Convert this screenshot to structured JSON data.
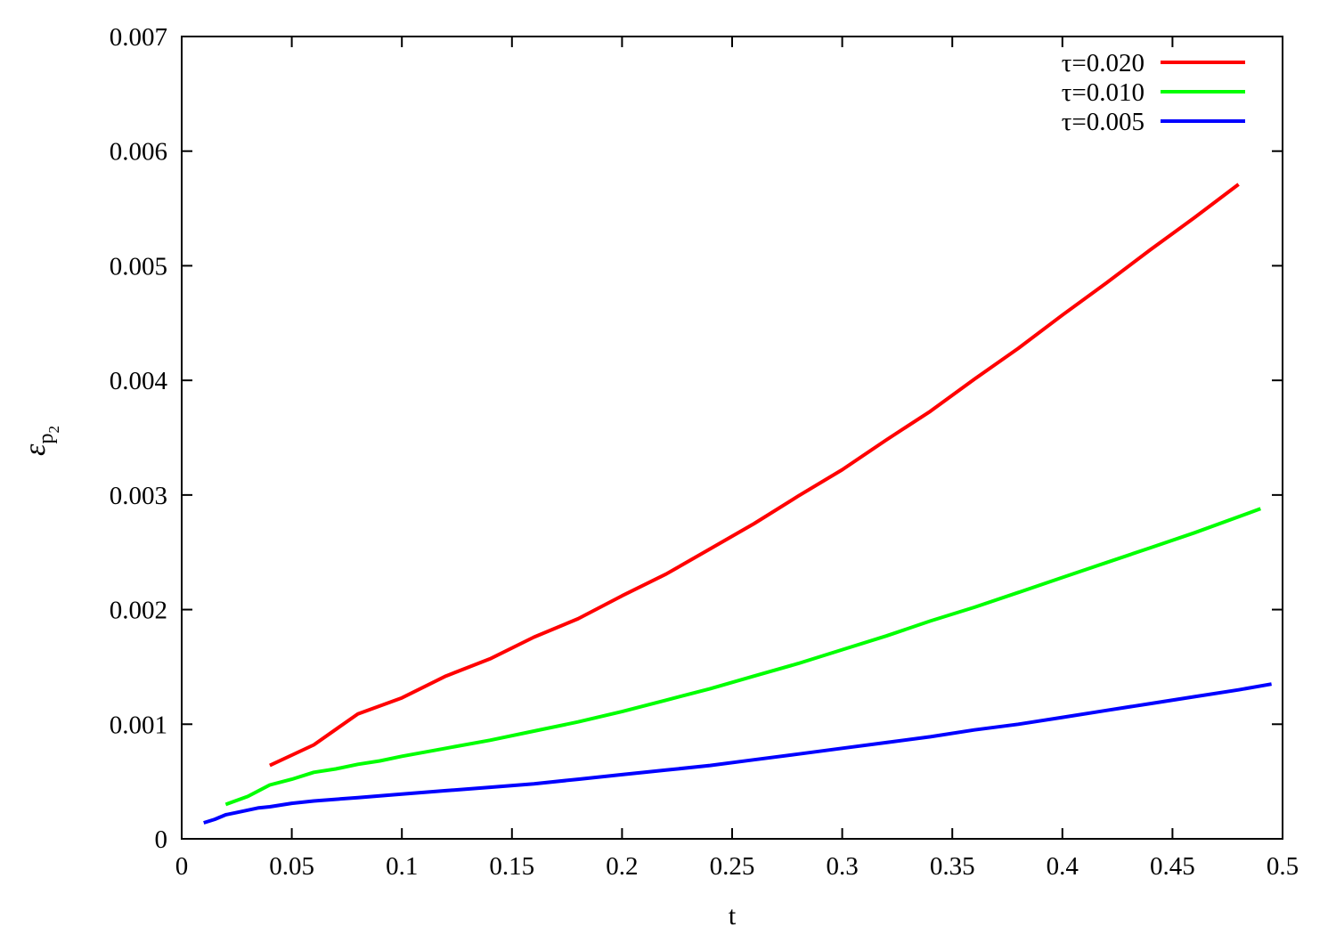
{
  "chart_data": {
    "type": "line",
    "title": "",
    "xlabel": "t",
    "ylabel_symbol": "ε",
    "ylabel_sub": "p",
    "ylabel_subsub": "2",
    "xlim": [
      0,
      0.5
    ],
    "ylim": [
      0,
      0.007
    ],
    "x_ticks": [
      0,
      0.05,
      0.1,
      0.15,
      0.2,
      0.25,
      0.3,
      0.35,
      0.4,
      0.45,
      0.5
    ],
    "x_tick_labels": [
      "0",
      "0.05",
      "0.1",
      "0.15",
      "0.2",
      "0.25",
      "0.3",
      "0.35",
      "0.4",
      "0.45",
      "0.5"
    ],
    "y_ticks": [
      0,
      0.001,
      0.002,
      0.003,
      0.004,
      0.005,
      0.006,
      0.007
    ],
    "y_tick_labels": [
      "0",
      "0.001",
      "0.002",
      "0.003",
      "0.004",
      "0.005",
      "0.006",
      "0.007"
    ],
    "grid": false,
    "legend_position": "top-right",
    "series": [
      {
        "name": "τ=0.020",
        "color": "#ff0000",
        "x": [
          0.04,
          0.06,
          0.08,
          0.1,
          0.12,
          0.14,
          0.16,
          0.18,
          0.2,
          0.22,
          0.24,
          0.26,
          0.28,
          0.3,
          0.32,
          0.34,
          0.36,
          0.38,
          0.4,
          0.42,
          0.44,
          0.46,
          0.48
        ],
        "y": [
          0.00064,
          0.00082,
          0.00109,
          0.00123,
          0.00142,
          0.00157,
          0.00176,
          0.00192,
          0.00212,
          0.00231,
          0.00253,
          0.00275,
          0.00299,
          0.00322,
          0.00348,
          0.00373,
          0.00401,
          0.00428,
          0.00457,
          0.00485,
          0.00514,
          0.00542,
          0.00571
        ]
      },
      {
        "name": "τ=0.010",
        "color": "#00ff00",
        "x": [
          0.02,
          0.03,
          0.04,
          0.05,
          0.06,
          0.07,
          0.08,
          0.09,
          0.1,
          0.12,
          0.14,
          0.16,
          0.18,
          0.2,
          0.22,
          0.24,
          0.26,
          0.28,
          0.3,
          0.32,
          0.34,
          0.36,
          0.38,
          0.4,
          0.42,
          0.44,
          0.46,
          0.49
        ],
        "y": [
          0.0003,
          0.00037,
          0.00047,
          0.00052,
          0.00058,
          0.00061,
          0.00065,
          0.00068,
          0.00072,
          0.00079,
          0.00086,
          0.00094,
          0.00102,
          0.00111,
          0.00121,
          0.00131,
          0.00142,
          0.00153,
          0.00165,
          0.00177,
          0.0019,
          0.00202,
          0.00215,
          0.00228,
          0.00241,
          0.00254,
          0.00267,
          0.00288
        ]
      },
      {
        "name": "τ=0.005",
        "color": "#0000ff",
        "x": [
          0.01,
          0.015,
          0.02,
          0.025,
          0.03,
          0.035,
          0.04,
          0.05,
          0.06,
          0.08,
          0.1,
          0.12,
          0.14,
          0.16,
          0.18,
          0.2,
          0.22,
          0.24,
          0.26,
          0.28,
          0.3,
          0.32,
          0.34,
          0.36,
          0.38,
          0.4,
          0.42,
          0.44,
          0.46,
          0.48,
          0.495
        ],
        "y": [
          0.00014,
          0.00017,
          0.00021,
          0.00023,
          0.00025,
          0.00027,
          0.00028,
          0.00031,
          0.00033,
          0.00036,
          0.00039,
          0.00042,
          0.00045,
          0.00048,
          0.00052,
          0.00056,
          0.0006,
          0.00064,
          0.00069,
          0.00074,
          0.00079,
          0.00084,
          0.00089,
          0.00095,
          0.001,
          0.00106,
          0.00112,
          0.00118,
          0.00124,
          0.0013,
          0.00135
        ]
      }
    ]
  }
}
